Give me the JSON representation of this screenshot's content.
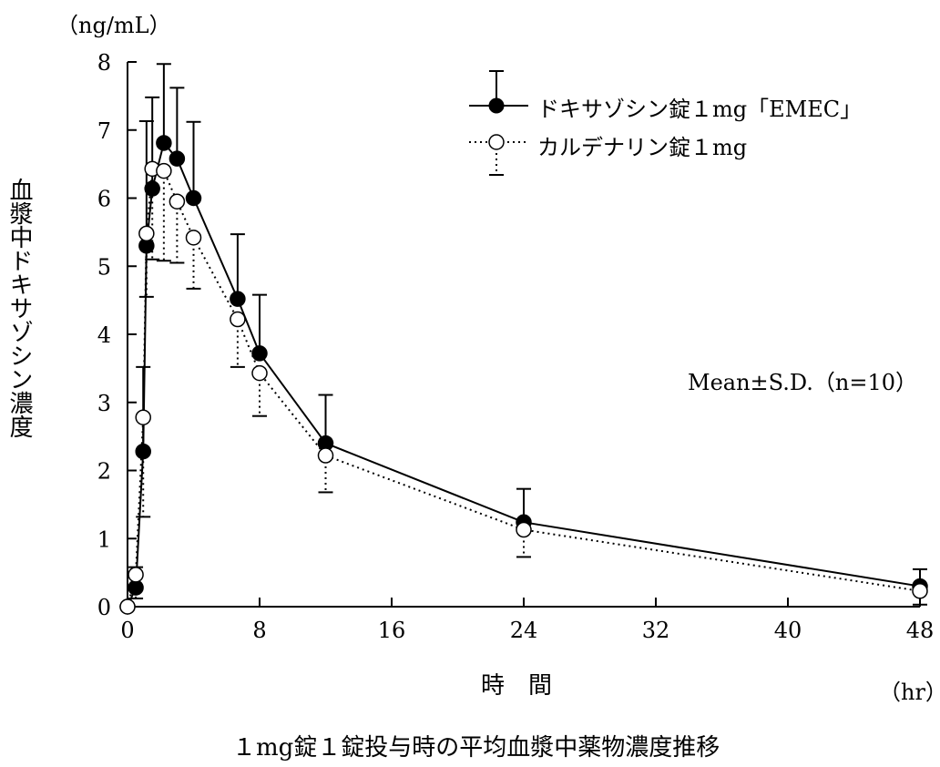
{
  "chart_data": {
    "type": "line",
    "unit_label": "（ng/mL）",
    "ylabel": "血漿中ドキサゾシン濃度",
    "xlabel": "時　間",
    "xunit": "（hr）",
    "caption": "１mg錠１錠投与時の平均血漿中薬物濃度推移",
    "annotation": "Mean±S.D.（n=10）",
    "xlim": [
      0,
      48
    ],
    "ylim": [
      0,
      8
    ],
    "xticks": [
      0,
      8,
      16,
      24,
      32,
      40,
      48
    ],
    "yticks": [
      0,
      1,
      2,
      3,
      4,
      5,
      6,
      7,
      8
    ],
    "legend_position": "top-right",
    "series": [
      {
        "name": "ドキサゾシン錠１mg「EMEC」",
        "marker": "filled-circle",
        "line": "solid",
        "error_direction": "up",
        "x": [
          0,
          0.5,
          0.95,
          1.15,
          1.5,
          2.2,
          3,
          4,
          6.67,
          8,
          12,
          24,
          48
        ],
        "y": [
          0,
          0.28,
          2.28,
          5.3,
          6.14,
          6.81,
          6.58,
          6.0,
          4.52,
          3.72,
          2.4,
          1.24,
          0.3
        ],
        "sd": [
          0,
          0.3,
          1.24,
          1.83,
          1.34,
          1.16,
          1.04,
          1.12,
          0.95,
          0.86,
          0.71,
          0.49,
          0.25
        ]
      },
      {
        "name": "カルデナリン錠１mg",
        "marker": "open-circle",
        "line": "dotted",
        "error_direction": "down",
        "x": [
          0,
          0.5,
          0.95,
          1.15,
          1.5,
          2.2,
          3,
          4,
          6.67,
          8,
          12,
          24,
          48
        ],
        "y": [
          0,
          0.47,
          2.78,
          5.48,
          6.43,
          6.4,
          5.95,
          5.42,
          4.22,
          3.43,
          2.22,
          1.13,
          0.23
        ],
        "sd": [
          0,
          0.35,
          1.46,
          0.93,
          1.33,
          1.32,
          0.9,
          0.75,
          0.7,
          0.63,
          0.54,
          0.4,
          0.2
        ]
      }
    ]
  }
}
